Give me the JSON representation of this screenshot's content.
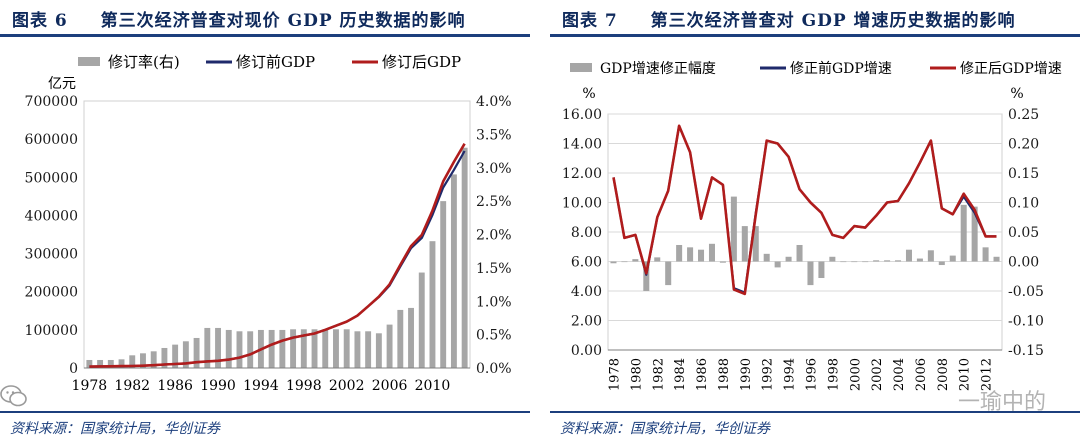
{
  "figures": [
    {
      "label": "图表 6",
      "title": "第三次经济普查对现价 GDP 历史数据的影响",
      "source": "资料来源：国家统计局，华创证券"
    },
    {
      "label": "图表 7",
      "title": "第三次经济普查对 GDP 增速历史数据的影响",
      "source": "资料来源：国家统计局，华创证券"
    }
  ],
  "watermark": "一瑜中的",
  "colors": {
    "bars": "#a6a6a6",
    "before": "#1f2a6b",
    "after": "#b01c1c",
    "rule": "#1c3f7d"
  },
  "chart_data": [
    {
      "type": "bar+line",
      "years": [
        1978,
        1979,
        1980,
        1981,
        1982,
        1983,
        1984,
        1985,
        1986,
        1987,
        1988,
        1989,
        1990,
        1991,
        1992,
        1993,
        1994,
        1995,
        1996,
        1997,
        1998,
        1999,
        2000,
        2001,
        2002,
        2003,
        2004,
        2005,
        2006,
        2007,
        2008,
        2009,
        2010,
        2011,
        2012,
        2013
      ],
      "xtick_labels": [
        "1978",
        "1982",
        "1986",
        "1990",
        "1994",
        "1998",
        "2002",
        "2006",
        "2010"
      ],
      "left_unit": "亿元",
      "ylim_left": [
        0,
        700000
      ],
      "yticks_left": [
        "0",
        "100000",
        "200000",
        "300000",
        "400000",
        "500000",
        "600000",
        "700000"
      ],
      "ylim_right": [
        0,
        4.0
      ],
      "yticks_right": [
        "0.0%",
        "0.5%",
        "1.0%",
        "1.5%",
        "2.0%",
        "2.5%",
        "3.0%",
        "3.5%",
        "4.0%"
      ],
      "legend": [
        "修订率(右)",
        "修订前GDP",
        "修订后GDP"
      ],
      "series": [
        {
          "name": "修订率(右)",
          "kind": "bar",
          "axis": "right",
          "values": [
            0.12,
            0.12,
            0.12,
            0.13,
            0.19,
            0.22,
            0.25,
            0.3,
            0.35,
            0.4,
            0.45,
            0.6,
            0.6,
            0.57,
            0.55,
            0.55,
            0.57,
            0.57,
            0.57,
            0.58,
            0.58,
            0.58,
            0.58,
            0.58,
            0.58,
            0.55,
            0.55,
            0.52,
            0.65,
            0.87,
            0.9,
            1.43,
            1.9,
            2.5,
            2.9,
            3.3
          ]
        },
        {
          "name": "修订前GDP",
          "kind": "line",
          "axis": "left",
          "values": [
            3679,
            4101,
            4588,
            4936,
            5373,
            6021,
            7279,
            9099,
            10376,
            12175,
            15180,
            17180,
            18873,
            22006,
            27195,
            35673,
            48638,
            61340,
            71814,
            79715,
            85196,
            90564,
            100280,
            110863,
            121717,
            137422,
            161840,
            185896,
            216314,
            265810,
            314045,
            340903,
            401513,
            473104,
            519470,
            568845
          ]
        },
        {
          "name": "修订后GDP",
          "kind": "line",
          "axis": "left",
          "values": [
            3679,
            4101,
            4588,
            4936,
            5373,
            6021,
            7279,
            9099,
            10376,
            12175,
            15180,
            17180,
            18873,
            22006,
            27195,
            35673,
            48638,
            61340,
            71814,
            79715,
            85196,
            90564,
            100280,
            110863,
            121717,
            137422,
            161840,
            187319,
            219439,
            270232,
            319516,
            349081,
            413030,
            489301,
            540367,
            588019
          ]
        }
      ]
    },
    {
      "type": "bar+line",
      "years": [
        1978,
        1979,
        1980,
        1981,
        1982,
        1983,
        1984,
        1985,
        1986,
        1987,
        1988,
        1989,
        1990,
        1991,
        1992,
        1993,
        1994,
        1995,
        1996,
        1997,
        1998,
        1999,
        2000,
        2001,
        2002,
        2003,
        2004,
        2005,
        2006,
        2007,
        2008,
        2009,
        2010,
        2011,
        2012,
        2013
      ],
      "xtick_labels": [
        "1978",
        "1980",
        "1982",
        "1984",
        "1986",
        "1988",
        "1990",
        "1992",
        "1994",
        "1996",
        "1998",
        "2000",
        "2002",
        "2004",
        "2006",
        "2008",
        "2010",
        "2012"
      ],
      "left_unit": "%",
      "right_unit": "%",
      "ylim_left": [
        0,
        16
      ],
      "yticks_left": [
        "0.00",
        "2.00",
        "4.00",
        "6.00",
        "8.00",
        "10.00",
        "12.00",
        "14.00",
        "16.00"
      ],
      "ylim_right": [
        -0.15,
        0.25
      ],
      "yticks_right": [
        "-0.15",
        "-0.10",
        "-0.05",
        "0.00",
        "0.05",
        "0.10",
        "0.15",
        "0.20",
        "0.25"
      ],
      "legend": [
        "GDP增速修正幅度",
        "修正前GDP增速",
        "修正后GDP增速"
      ],
      "series": [
        {
          "name": "GDP增速修正幅度",
          "kind": "bar",
          "axis": "right",
          "values": [
            -0.003,
            0,
            0.004,
            -0.05,
            0.007,
            -0.04,
            0.028,
            0.024,
            0.02,
            0.03,
            -0.002,
            0.11,
            0.06,
            0.06,
            0.013,
            -0.01,
            0.008,
            0.028,
            -0.04,
            -0.028,
            0.008,
            0,
            0,
            0,
            0.002,
            0.002,
            0.002,
            0.02,
            0.005,
            0.019,
            -0.006,
            0.01,
            0.096,
            0.093,
            0.024,
            0.008
          ]
        },
        {
          "name": "修正前GDP增速",
          "kind": "line",
          "axis": "left",
          "values": [
            11.7,
            7.6,
            7.8,
            5.1,
            9.0,
            10.8,
            15.2,
            13.4,
            8.9,
            11.7,
            11.2,
            4.2,
            3.9,
            9.3,
            14.2,
            14.0,
            13.1,
            10.9,
            10.0,
            9.3,
            7.8,
            7.6,
            8.4,
            8.3,
            9.1,
            10.0,
            10.1,
            11.3,
            12.7,
            14.2,
            9.6,
            9.2,
            10.4,
            9.3,
            7.7,
            7.7
          ]
        },
        {
          "name": "修正后GDP增速",
          "kind": "line",
          "axis": "left",
          "values": [
            11.7,
            7.6,
            7.8,
            5.2,
            9.0,
            10.8,
            15.2,
            13.4,
            8.9,
            11.7,
            11.2,
            4.1,
            3.8,
            9.2,
            14.2,
            14.0,
            13.1,
            10.9,
            10.0,
            9.3,
            7.8,
            7.6,
            8.4,
            8.3,
            9.1,
            10.0,
            10.1,
            11.3,
            12.7,
            14.2,
            9.6,
            9.2,
            10.6,
            9.5,
            7.7,
            7.7
          ]
        }
      ]
    }
  ]
}
